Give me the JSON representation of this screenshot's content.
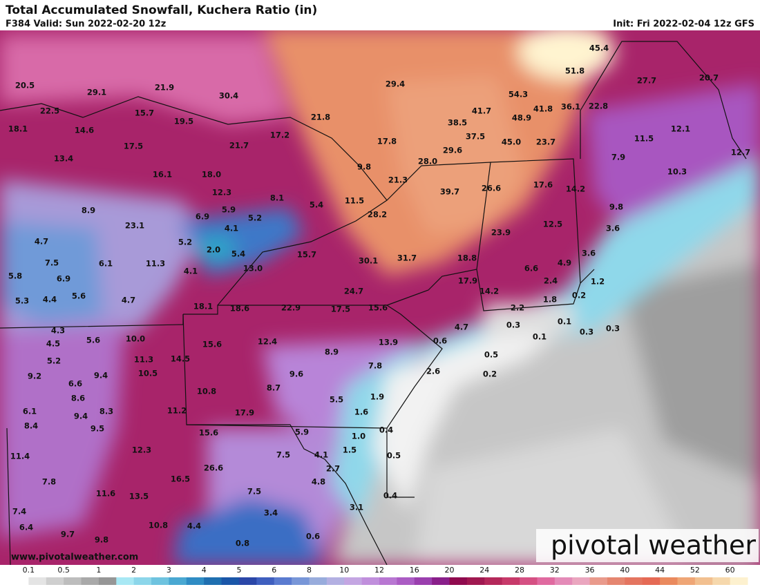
{
  "header": {
    "title": "Total Accumulated Snowfall, Kuchera Ratio (in)",
    "valid": "F384 Valid: Sun 2022-02-20 12z",
    "init": "Init: Fri 2022-02-04 12z GFS"
  },
  "map": {
    "labels": [
      "20.5",
      "29.1",
      "21.9",
      "30.4",
      "29.4",
      "45.4",
      "51.8",
      "27.7",
      "20.7",
      "22.5",
      "15.7",
      "19.5",
      "21.8",
      "54.3",
      "41.7",
      "41.8",
      "36.1",
      "22.8",
      "18.1",
      "14.6",
      "38.5",
      "48.9",
      "12.1",
      "17.5",
      "21.7",
      "17.2",
      "17.8",
      "37.5",
      "45.0",
      "23.7",
      "11.5",
      "13.4",
      "29.6",
      "28.0",
      "7.9",
      "12.7",
      "16.1",
      "18.0",
      "9.8",
      "21.3",
      "26.6",
      "17.6",
      "14.2",
      "10.3",
      "12.3",
      "8.1",
      "39.7",
      "8.9",
      "5.9",
      "5.4",
      "11.5",
      "9.8",
      "6.9",
      "5.2",
      "28.2",
      "12.5",
      "3.6",
      "23.1",
      "4.1",
      "23.9",
      "4.7",
      "5.2",
      "2.0",
      "5.4",
      "15.7",
      "3.6",
      "7.5",
      "6.1",
      "11.3",
      "13.0",
      "30.1",
      "31.7",
      "18.8",
      "4.9",
      "6.6",
      "5.8",
      "6.9",
      "4.1",
      "17.9",
      "2.4",
      "1.2",
      "5.3",
      "4.4",
      "5.6",
      "4.7",
      "24.7",
      "14.2",
      "0.2",
      "1.8",
      "18.1",
      "18.6",
      "22.9",
      "17.5",
      "15.6",
      "2.2",
      "0.3",
      "0.1",
      "4.7",
      "0.3",
      "0.3",
      "4.3",
      "0.1",
      "4.5",
      "5.6",
      "10.0",
      "15.6",
      "12.4",
      "13.9",
      "0.6",
      "8.9",
      "0.5",
      "5.2",
      "11.3",
      "14.5",
      "7.8",
      "9.2",
      "10.5",
      "9.4",
      "9.6",
      "2.6",
      "0.2",
      "6.6",
      "8.7",
      "8.6",
      "10.8",
      "5.5",
      "1.9",
      "6.1",
      "9.4",
      "8.3",
      "11.2",
      "17.9",
      "1.6",
      "8.4",
      "9.5",
      "15.6",
      "5.9",
      "0.4",
      "1.0",
      "11.4",
      "12.3",
      "7.5",
      "4.1",
      "1.5",
      "0.5",
      "26.6",
      "2.7",
      "7.8",
      "16.5",
      "4.8",
      "11.6",
      "13.5",
      "7.5",
      "0.4",
      "7.4",
      "3.4",
      "3.1",
      "6.4",
      "10.8",
      "4.4",
      "9.7",
      "9.8",
      "0.6",
      "0.8"
    ]
  },
  "colorbar": {
    "ticks": [
      "0.1",
      "0.5",
      "1",
      "2",
      "3",
      "4",
      "5",
      "6",
      "8",
      "10",
      "12",
      "16",
      "20",
      "24",
      "28",
      "32",
      "36",
      "40",
      "44",
      "52",
      "60"
    ],
    "colors": [
      "#ffffff",
      "#e4e4e4",
      "#cfcfcf",
      "#bdbdbd",
      "#a9a9a9",
      "#969696",
      "#a8e8f4",
      "#8cd6ea",
      "#6ec3df",
      "#4aa8d2",
      "#2f8cc4",
      "#1f6fb0",
      "#1a56a8",
      "#2b47a8",
      "#3f5fbf",
      "#5a7bd0",
      "#7896d8",
      "#98acdc",
      "#b3b0e2",
      "#c4a6e2",
      "#c08fdc",
      "#b877d2",
      "#ab5cc4",
      "#9a3fae",
      "#891f8a",
      "#900a4e",
      "#a01850",
      "#b4285a",
      "#c73a6a",
      "#d55083",
      "#e06aa0",
      "#e48bb8",
      "#eaa6bf",
      "#e99a8c",
      "#e58670",
      "#e47560",
      "#e56a55",
      "#ea8a5e",
      "#efa676",
      "#f2c090",
      "#f6d8ac",
      "#fdf1cf"
    ]
  },
  "footer": {
    "url": "www.pivotalweather.com",
    "logo": "pivotal weather"
  }
}
